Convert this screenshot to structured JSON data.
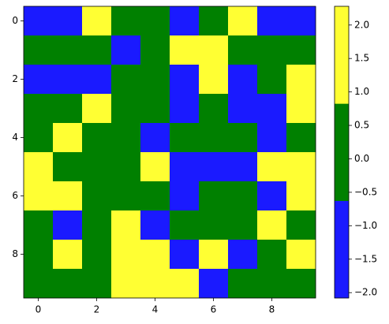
{
  "chart_data": {
    "type": "heatmap",
    "colors": [
      "#1a1aff",
      "#008000",
      "#ffff33"
    ],
    "zlim": [
      -2.08,
      2.28
    ],
    "values": [
      [
        -1.4,
        -1.4,
        1.6,
        0,
        0,
        -1.4,
        0,
        1.6,
        -1.4,
        -1.4
      ],
      [
        0,
        0,
        0,
        -1.4,
        0,
        1.6,
        1.6,
        0,
        0,
        0
      ],
      [
        -1.4,
        -1.4,
        -1.4,
        0,
        0,
        -1.4,
        1.6,
        -1.4,
        0,
        1.6
      ],
      [
        0,
        0,
        1.6,
        0,
        0,
        -1.4,
        0,
        -1.4,
        -1.4,
        1.6
      ],
      [
        0,
        1.6,
        0,
        0,
        -1.4,
        0,
        0,
        0,
        -1.4,
        0
      ],
      [
        1.6,
        0,
        0,
        0,
        1.6,
        -1.4,
        -1.4,
        -1.4,
        1.6,
        1.6
      ],
      [
        1.6,
        1.6,
        0,
        0,
        0,
        -1.4,
        0,
        0,
        -1.4,
        1.6
      ],
      [
        0,
        -1.4,
        0,
        1.6,
        -1.4,
        0,
        0,
        0,
        1.6,
        0
      ],
      [
        0,
        1.6,
        0,
        1.6,
        1.6,
        -1.4,
        1.6,
        -1.4,
        0,
        1.6
      ],
      [
        0,
        0,
        0,
        1.6,
        1.6,
        1.6,
        -1.4,
        0,
        0,
        0
      ]
    ],
    "xlim": [
      -0.5,
      9.5
    ],
    "ylim": [
      9.5,
      -0.5
    ],
    "xticks": [
      0,
      2,
      4,
      6,
      8
    ],
    "yticks": [
      0,
      2,
      4,
      6,
      8
    ],
    "colorbar_ticks": [
      {
        "value": -2,
        "label": "−2.0"
      },
      {
        "value": -1.5,
        "label": "−1.5"
      },
      {
        "value": -1,
        "label": "−1.0"
      },
      {
        "value": -0.5,
        "label": "−0.5"
      },
      {
        "value": 0,
        "label": "0.0"
      },
      {
        "value": 0.5,
        "label": "0.5"
      },
      {
        "value": 1,
        "label": "1.0"
      },
      {
        "value": 1.5,
        "label": "1.5"
      },
      {
        "value": 2,
        "label": "2.0"
      }
    ]
  }
}
